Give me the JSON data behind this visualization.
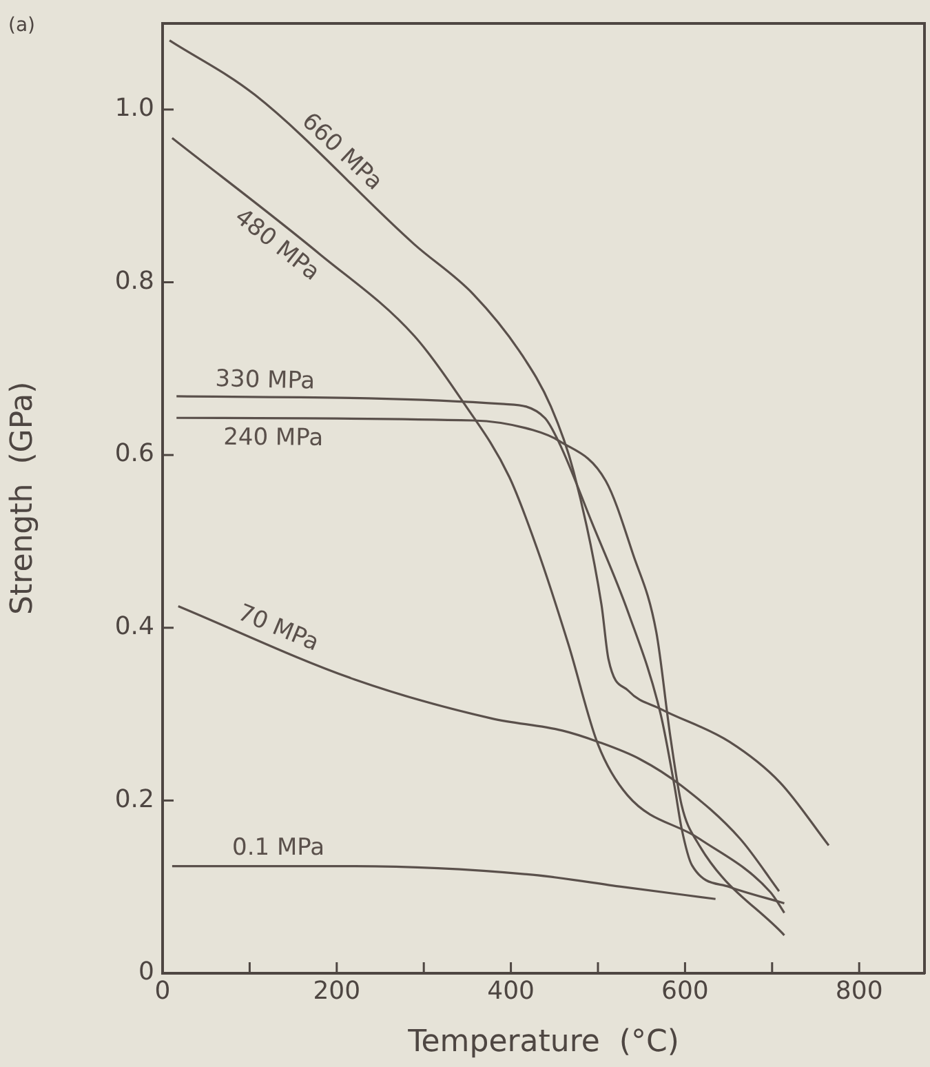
{
  "chart_data": {
    "type": "line",
    "xlabel": "Temperature  (°C)",
    "ylabel": "Strength  (GPa)",
    "annotations": [
      "(a)"
    ],
    "xlim": [
      0,
      875
    ],
    "ylim": [
      0,
      1.1
    ],
    "xticks": [
      0,
      {
        "value": 100,
        "label": null
      },
      200,
      {
        "value": 300,
        "label": null
      },
      400,
      {
        "value": 500,
        "label": null
      },
      600,
      {
        "value": 700,
        "label": null
      },
      800
    ],
    "yticks": [
      0,
      0.2,
      0.4,
      0.6,
      0.8,
      {
        "value": 1,
        "label": "1.0"
      }
    ],
    "grid": false,
    "legend": false,
    "marker": "none",
    "line_style": "solid",
    "series": [
      {
        "name": "660 MPa",
        "color": "#5a504b",
        "x": [
          8,
          106,
          289,
          357,
          412,
          446,
          472,
          504,
          512,
          535,
          572,
          651,
          709,
          765
        ],
        "values": [
          1.08,
          1.017,
          0.844,
          0.786,
          0.717,
          0.656,
          0.581,
          0.427,
          0.364,
          0.327,
          0.306,
          0.268,
          0.221,
          0.148
        ]
      },
      {
        "name": "480 MPa",
        "color": "#5a504b",
        "x": [
          11,
          180,
          289,
          344,
          398,
          430,
          466,
          500,
          534,
          616,
          698,
          714
        ],
        "values": [
          0.967,
          0.833,
          0.738,
          0.663,
          0.575,
          0.492,
          0.381,
          0.265,
          0.206,
          0.156,
          0.094,
          0.07
        ]
      },
      {
        "name": "330 MPa",
        "color": "#5a504b",
        "x": [
          16,
          392,
          439,
          456,
          493,
          535,
          572,
          588,
          596,
          608,
          651,
          714
        ],
        "values": [
          0.668,
          0.659,
          0.643,
          0.613,
          0.522,
          0.417,
          0.3,
          0.216,
          0.168,
          0.125,
          0.1,
          0.081
        ]
      },
      {
        "name": "240 MPa",
        "color": "#5a504b",
        "x": [
          16,
          357,
          425,
          456,
          509,
          540,
          567,
          583,
          596,
          614,
          714
        ],
        "values": [
          0.643,
          0.64,
          0.629,
          0.616,
          0.57,
          0.486,
          0.395,
          0.275,
          0.195,
          0.152,
          0.044
        ]
      },
      {
        "name": "70 MPa",
        "color": "#5a504b",
        "x": [
          18,
          221,
          378,
          459,
          500,
          548,
          596,
          663,
          708
        ],
        "values": [
          0.425,
          0.34,
          0.295,
          0.281,
          0.268,
          0.248,
          0.217,
          0.156,
          0.095
        ]
      },
      {
        "name": "0.1 MPa",
        "color": "#5a504b",
        "x": [
          11,
          221,
          425,
          528,
          635
        ],
        "values": [
          0.124,
          0.124,
          0.114,
          0.1,
          0.086
        ]
      }
    ]
  }
}
